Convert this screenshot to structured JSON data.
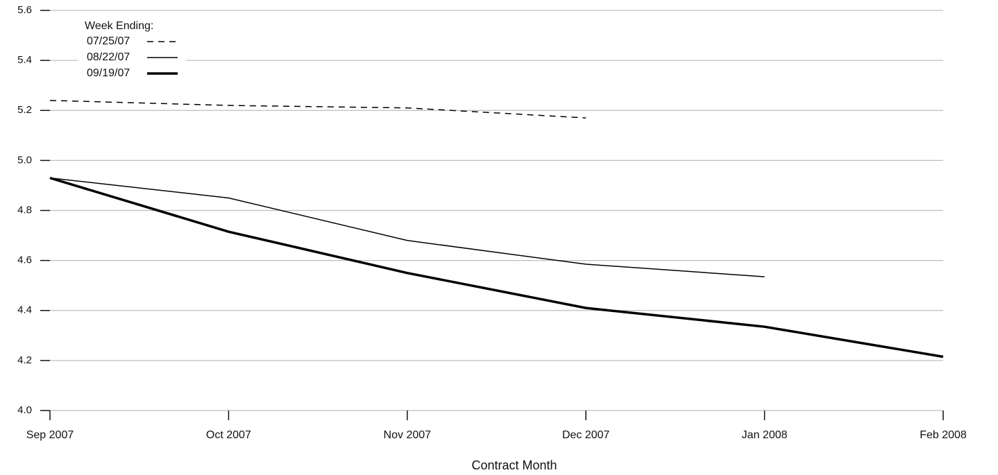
{
  "chart_data": {
    "type": "line",
    "x_label": "Contract Month",
    "categories": [
      "Sep 2007",
      "Oct 2007",
      "Nov 2007",
      "Dec 2007",
      "Jan 2008",
      "Feb 2008"
    ],
    "ylim": [
      4.0,
      5.6
    ],
    "yticks": [
      {
        "value": 4.0,
        "label": "4.0"
      },
      4.2,
      4.4,
      4.6,
      4.8,
      {
        "value": 5.0,
        "label": "5.0"
      },
      5.2,
      5.4,
      5.6
    ],
    "grid": true,
    "legend_title": "Week Ending:",
    "legend_position": "upper-left",
    "series": [
      {
        "name": "07/25/07",
        "color": "#000000",
        "style": "dashed",
        "values": [
          5.24,
          5.22,
          5.21,
          5.17,
          null,
          null
        ]
      },
      {
        "name": "08/22/07",
        "color": "#000000",
        "style": "solid",
        "values": [
          4.93,
          4.85,
          4.68,
          4.585,
          4.535,
          null
        ]
      },
      {
        "name": "09/19/07",
        "color": "#000000",
        "style": "thick",
        "values": [
          4.93,
          4.715,
          4.55,
          4.41,
          4.335,
          4.215
        ]
      }
    ]
  }
}
